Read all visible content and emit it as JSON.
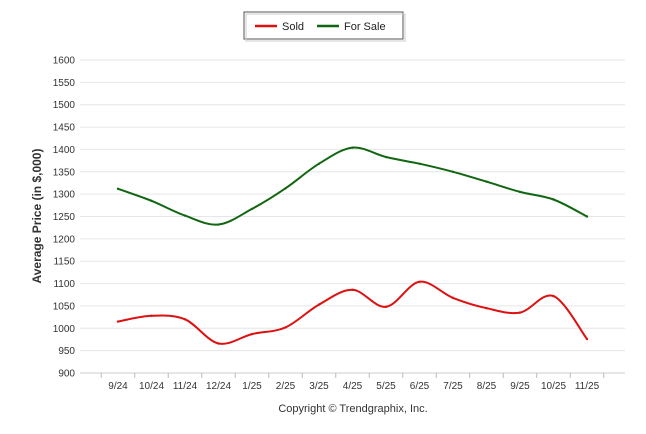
{
  "chart_data": {
    "type": "line",
    "title": "",
    "xlabel": "",
    "ylabel": "Average Price (in $,000)",
    "ylim": [
      900,
      1600
    ],
    "yticks": [
      900,
      950,
      1000,
      1050,
      1100,
      1150,
      1200,
      1250,
      1300,
      1350,
      1400,
      1450,
      1500,
      1550,
      1600
    ],
    "grid": true,
    "legend_position": "top-center",
    "categories": [
      "9/24",
      "10/24",
      "11/24",
      "12/24",
      "1/25",
      "2/25",
      "3/25",
      "4/25",
      "5/25",
      "6/25",
      "7/25",
      "8/25",
      "9/25",
      "10/25",
      "11/25"
    ],
    "series": [
      {
        "name": "Sold",
        "color": "#dd1111",
        "values": [
          1015,
          1028,
          1020,
          966,
          987,
          1002,
          1053,
          1086,
          1048,
          1104,
          1068,
          1045,
          1035,
          1072,
          976
        ]
      },
      {
        "name": "For Sale",
        "color": "#116611",
        "values": [
          1312,
          1285,
          1252,
          1232,
          1267,
          1313,
          1368,
          1404,
          1383,
          1368,
          1350,
          1328,
          1305,
          1288,
          1250
        ]
      }
    ],
    "footer": "Copyright © Trendgraphix, Inc."
  }
}
